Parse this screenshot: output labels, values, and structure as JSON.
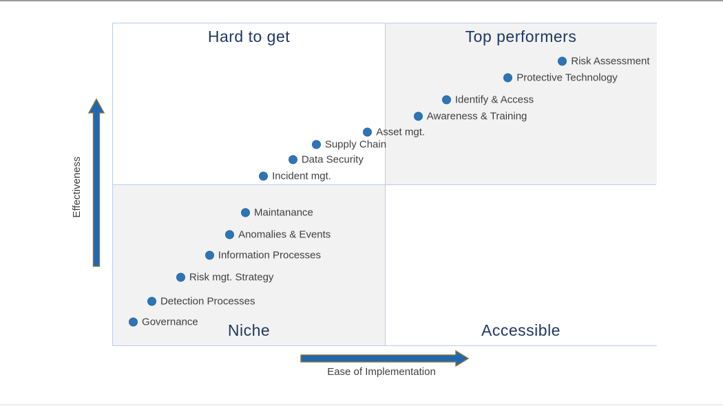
{
  "page": {
    "top_border_color": "#9a9a9a",
    "bottom_border_color": "#dcdcdc"
  },
  "chart_data": {
    "type": "scatter",
    "title": "",
    "xlabel": "Ease of Implementation",
    "ylabel": "Effectiveness",
    "x_range": [
      0,
      100
    ],
    "y_range": [
      0,
      100
    ],
    "grid": false,
    "legend": "none",
    "quadrants": {
      "top_left": "Hard to get",
      "top_right": "Top performers",
      "bottom_left": "Niche",
      "bottom_right": "Accessible"
    },
    "points": [
      {
        "label": "Risk Assessment",
        "x": 82.6,
        "y": 88.3
      },
      {
        "label": "Protective Technology",
        "x": 72.6,
        "y": 83.2
      },
      {
        "label": "Identify & Access",
        "x": 61.3,
        "y": 76.4
      },
      {
        "label": "Awareness & Training",
        "x": 56.1,
        "y": 71.3
      },
      {
        "label": "Asset mgt.",
        "x": 46.8,
        "y": 66.4
      },
      {
        "label": "Supply Chain",
        "x": 37.4,
        "y": 62.6
      },
      {
        "label": "Data Security",
        "x": 33.1,
        "y": 57.9
      },
      {
        "label": "Incident mgt.",
        "x": 27.7,
        "y": 52.8
      },
      {
        "label": "Maintanance",
        "x": 24.4,
        "y": 41.5
      },
      {
        "label": "Anomalies & Events",
        "x": 21.5,
        "y": 34.7
      },
      {
        "label": "Information Processes",
        "x": 17.8,
        "y": 28.3
      },
      {
        "label": "Risk mgt. Strategy",
        "x": 12.5,
        "y": 21.5
      },
      {
        "label": "Detection Processes",
        "x": 7.2,
        "y": 14.0
      },
      {
        "label": "Governance",
        "x": 3.8,
        "y": 7.7
      }
    ],
    "colors": {
      "dot": "#2e75b6",
      "dot_edge": "#2a699f",
      "quadrant_fill": "#f2f2f2",
      "border": "#b9cde6",
      "title": "#1f3864",
      "label": "#3f3f3f",
      "arrow_fill": "#2068ae",
      "arrow_stroke": "#8e7439"
    }
  }
}
